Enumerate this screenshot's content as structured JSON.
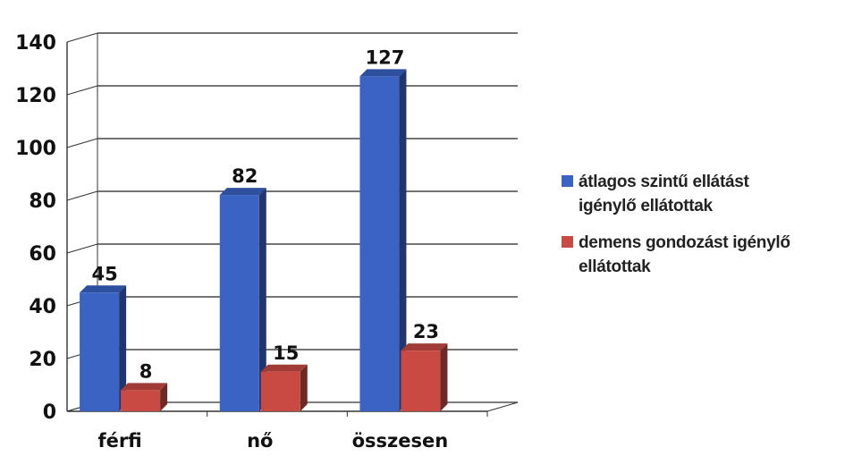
{
  "chart_data": {
    "type": "bar",
    "categories": [
      "férfi",
      "nő",
      "összesen"
    ],
    "series": [
      {
        "name": "átlagos szintű ellátást igénylő ellátottak",
        "values": [
          45,
          82,
          127
        ],
        "color": "#3a63c4"
      },
      {
        "name": "demens gondozást igénylő ellátottak",
        "values": [
          8,
          15,
          23
        ],
        "color": "#c94a43"
      }
    ],
    "ylim": [
      0,
      140
    ],
    "yticks": [
      0,
      20,
      40,
      60,
      80,
      100,
      120,
      140
    ],
    "grid": true,
    "legend_position": "right",
    "style": "3d"
  },
  "legend": {
    "items": [
      {
        "line1": "átlagos szintű ellátást",
        "line2": "igénylő ellátottak",
        "color": "#3a63c4"
      },
      {
        "line1": "demens gondozást igénylő",
        "line2": "ellátottak",
        "color": "#c94a43"
      }
    ]
  }
}
